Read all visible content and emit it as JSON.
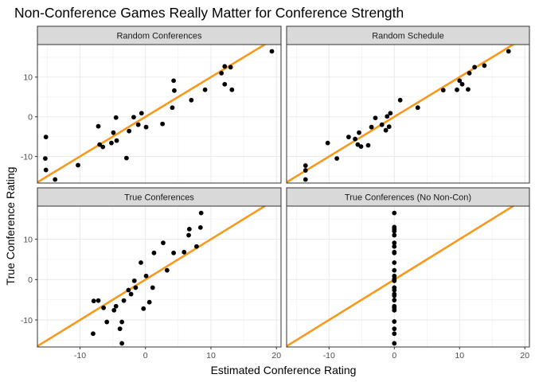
{
  "chart_data": {
    "type": "scatter",
    "title": "Non-Conference Games Really Matter for Conference Strength",
    "xlabel": "Estimated Conference Rating",
    "ylabel": "True Conference Rating",
    "xlim": [
      -16.5,
      20.7
    ],
    "ylim": [
      -16.7,
      18.2
    ],
    "x_ticks": [
      -10,
      0,
      10,
      20
    ],
    "y_ticks": [
      -10,
      0,
      10
    ],
    "x_tick_labels": [
      "-10",
      "0",
      "10",
      "20"
    ],
    "y_tick_labels": [
      "-10",
      "0",
      "10"
    ],
    "grid": true,
    "reference_line": {
      "slope": 1,
      "intercept": 0,
      "color": "#F7991C"
    },
    "point_color": "#000000",
    "panels": [
      {
        "name": "Random Conferences",
        "points": [
          {
            "x": -15.2,
            "y": -5.1
          },
          {
            "x": -15.3,
            "y": -10.5
          },
          {
            "x": -15.2,
            "y": -13.4
          },
          {
            "x": -13.8,
            "y": -15.8
          },
          {
            "x": -10.3,
            "y": -12.2
          },
          {
            "x": -7.2,
            "y": -2.4
          },
          {
            "x": -7.0,
            "y": -7.0
          },
          {
            "x": -6.5,
            "y": -7.6
          },
          {
            "x": -5.2,
            "y": -6.6
          },
          {
            "x": -4.9,
            "y": -4.0
          },
          {
            "x": -4.5,
            "y": -0.2
          },
          {
            "x": -4.4,
            "y": -6.0
          },
          {
            "x": -2.9,
            "y": -10.4
          },
          {
            "x": -2.5,
            "y": -3.6
          },
          {
            "x": -1.8,
            "y": -0.1
          },
          {
            "x": -1.1,
            "y": -2.0
          },
          {
            "x": -0.6,
            "y": 0.9
          },
          {
            "x": 0.1,
            "y": -2.6
          },
          {
            "x": 2.6,
            "y": -1.8
          },
          {
            "x": 4.1,
            "y": 2.3
          },
          {
            "x": 4.4,
            "y": 6.6
          },
          {
            "x": 4.3,
            "y": 9.1
          },
          {
            "x": 7.0,
            "y": 4.2
          },
          {
            "x": 9.1,
            "y": 6.8
          },
          {
            "x": 11.6,
            "y": 11.0
          },
          {
            "x": 12.1,
            "y": 8.2
          },
          {
            "x": 12.1,
            "y": 12.7
          },
          {
            "x": 13.0,
            "y": 12.5
          },
          {
            "x": 13.2,
            "y": 6.8
          },
          {
            "x": 19.3,
            "y": 16.5
          }
        ]
      },
      {
        "name": "Random Schedule",
        "points": [
          {
            "x": -13.6,
            "y": -15.8
          },
          {
            "x": -13.6,
            "y": -13.5
          },
          {
            "x": -13.6,
            "y": -12.3
          },
          {
            "x": -10.2,
            "y": -6.6
          },
          {
            "x": -8.8,
            "y": -10.5
          },
          {
            "x": -7.0,
            "y": -5.1
          },
          {
            "x": -6.0,
            "y": -5.6
          },
          {
            "x": -5.6,
            "y": -7.0
          },
          {
            "x": -5.4,
            "y": -4.0
          },
          {
            "x": -5.1,
            "y": -7.5
          },
          {
            "x": -4.0,
            "y": -7.2
          },
          {
            "x": -3.5,
            "y": -2.6
          },
          {
            "x": -2.9,
            "y": -0.3
          },
          {
            "x": -1.9,
            "y": -2.0
          },
          {
            "x": -1.3,
            "y": -3.4
          },
          {
            "x": -1.1,
            "y": 0.1
          },
          {
            "x": -0.8,
            "y": -2.5
          },
          {
            "x": -0.6,
            "y": 0.9
          },
          {
            "x": 0.9,
            "y": 4.2
          },
          {
            "x": 3.6,
            "y": 2.3
          },
          {
            "x": 7.5,
            "y": 6.7
          },
          {
            "x": 9.6,
            "y": 6.8
          },
          {
            "x": 10.0,
            "y": 9.1
          },
          {
            "x": 10.4,
            "y": 8.2
          },
          {
            "x": 11.3,
            "y": 6.9
          },
          {
            "x": 11.5,
            "y": 11.0
          },
          {
            "x": 12.3,
            "y": 12.5
          },
          {
            "x": 13.8,
            "y": 12.9
          },
          {
            "x": 17.5,
            "y": 16.5
          }
        ]
      },
      {
        "name": "True Conferences",
        "points": [
          {
            "x": -8.0,
            "y": -13.4
          },
          {
            "x": -7.9,
            "y": -5.3
          },
          {
            "x": -7.2,
            "y": -5.2
          },
          {
            "x": -6.4,
            "y": -7.0
          },
          {
            "x": -5.9,
            "y": -10.5
          },
          {
            "x": -4.8,
            "y": -7.6
          },
          {
            "x": -4.5,
            "y": -6.6
          },
          {
            "x": -3.9,
            "y": -12.2
          },
          {
            "x": -3.6,
            "y": -10.5
          },
          {
            "x": -3.6,
            "y": -15.8
          },
          {
            "x": -3.3,
            "y": -5.2
          },
          {
            "x": -2.6,
            "y": -2.6
          },
          {
            "x": -2.2,
            "y": -3.6
          },
          {
            "x": -1.7,
            "y": -0.3
          },
          {
            "x": -1.5,
            "y": -2.0
          },
          {
            "x": -0.7,
            "y": 4.2
          },
          {
            "x": -0.3,
            "y": -7.2
          },
          {
            "x": 0.1,
            "y": 0.9
          },
          {
            "x": 0.6,
            "y": -5.6
          },
          {
            "x": 1.1,
            "y": -2.0
          },
          {
            "x": 1.3,
            "y": 6.6
          },
          {
            "x": 2.7,
            "y": 9.1
          },
          {
            "x": 3.3,
            "y": 2.3
          },
          {
            "x": 4.3,
            "y": 6.6
          },
          {
            "x": 5.9,
            "y": 6.8
          },
          {
            "x": 6.6,
            "y": 11.0
          },
          {
            "x": 6.7,
            "y": 12.5
          },
          {
            "x": 7.8,
            "y": 8.2
          },
          {
            "x": 8.4,
            "y": 12.9
          },
          {
            "x": 8.5,
            "y": 16.5
          }
        ]
      },
      {
        "name": "True Conferences (No Non-Con)",
        "points": [
          {
            "x": 0,
            "y": 16.5
          },
          {
            "x": 0,
            "y": 13.0
          },
          {
            "x": 0,
            "y": 12.5
          },
          {
            "x": 0,
            "y": 12.0
          },
          {
            "x": 0,
            "y": 11.0
          },
          {
            "x": 0,
            "y": 9.1
          },
          {
            "x": 0,
            "y": 8.2
          },
          {
            "x": 0,
            "y": 6.8
          },
          {
            "x": 0,
            "y": 6.6
          },
          {
            "x": 0,
            "y": 4.2
          },
          {
            "x": 0,
            "y": 2.3
          },
          {
            "x": 0,
            "y": 0.9
          },
          {
            "x": 0,
            "y": 0.1
          },
          {
            "x": 0,
            "y": -0.3
          },
          {
            "x": 0,
            "y": -2.0
          },
          {
            "x": 0,
            "y": -2.6
          },
          {
            "x": 0,
            "y": -3.6
          },
          {
            "x": 0,
            "y": -4.0
          },
          {
            "x": 0,
            "y": -5.1
          },
          {
            "x": 0,
            "y": -6.6
          },
          {
            "x": 0,
            "y": -7.0
          },
          {
            "x": 0,
            "y": -7.6
          },
          {
            "x": 0,
            "y": -10.4
          },
          {
            "x": 0,
            "y": -12.2
          },
          {
            "x": 0,
            "y": -13.4
          },
          {
            "x": 0,
            "y": -15.8
          }
        ]
      }
    ]
  }
}
